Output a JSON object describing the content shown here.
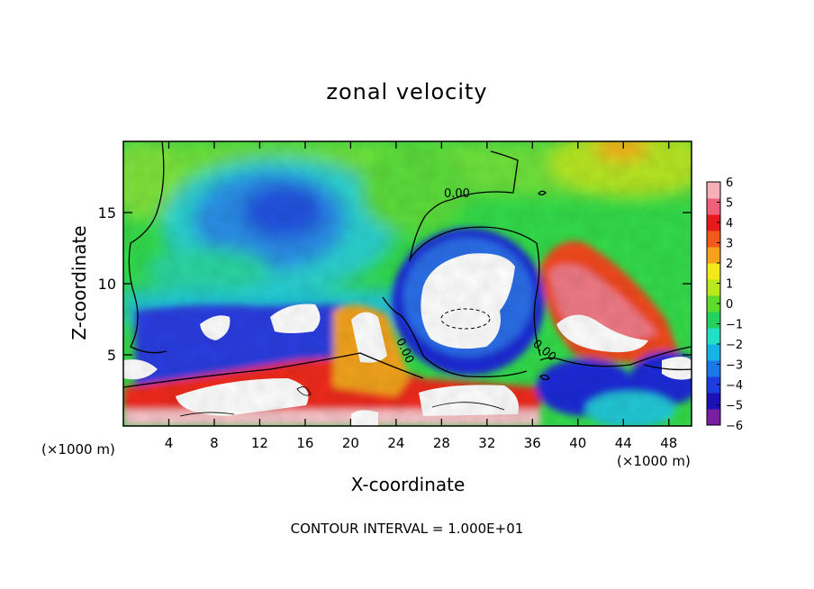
{
  "chart_data": {
    "type": "heatmap",
    "title": "zonal velocity",
    "xlabel": "X-coordinate",
    "ylabel": "Z-coordinate",
    "x_unit": "(×1000 m)",
    "x_unit_right": "(×1000 m)",
    "xlim": [
      0,
      50
    ],
    "ylim": [
      0,
      20
    ],
    "x_ticks": [
      4,
      8,
      12,
      16,
      20,
      24,
      28,
      32,
      36,
      40,
      44,
      48
    ],
    "y_ticks": [
      5,
      10,
      15
    ],
    "colorbar": {
      "ticks": [
        6,
        5,
        4,
        3,
        2,
        1,
        0,
        -1,
        -2,
        -3,
        -4,
        -5,
        -6
      ],
      "range": [
        -6,
        6
      ],
      "colors": [
        "#7a1fa2",
        "#1a12b8",
        "#1c3de0",
        "#1a78ea",
        "#16b4e6",
        "#22e0c8",
        "#22d25a",
        "#5ddc2a",
        "#b9e81e",
        "#f3e81a",
        "#f7a21a",
        "#f25a1a",
        "#e51a1a",
        "#f0607a",
        "#f6b0b6"
      ]
    },
    "contour_label": "0.00",
    "contour_interval_text": "CONTOUR INTERVAL = 1.000E+01"
  }
}
